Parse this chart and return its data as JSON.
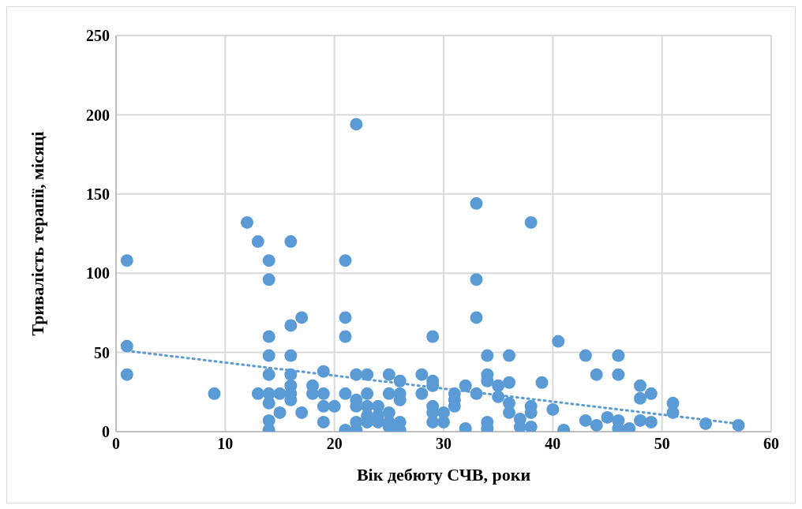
{
  "chart_data": {
    "type": "scatter",
    "xlabel": "Вік дебюту СЧВ, роки",
    "ylabel": "Тривалість  терапії, місяці",
    "xlim": [
      0,
      60
    ],
    "xticks": [
      0,
      10,
      20,
      30,
      40,
      50,
      60
    ],
    "ylim": [
      0,
      250
    ],
    "yticks": [
      0,
      50,
      100,
      150,
      200,
      250
    ],
    "grid": true,
    "series": [
      {
        "color": "#5b9bd5",
        "marker": "circle",
        "x": [
          1,
          1,
          1,
          9,
          12,
          13,
          14,
          14,
          13,
          14,
          14,
          14,
          14,
          14,
          14,
          14,
          15,
          15,
          16,
          16,
          17,
          16,
          16,
          16,
          16,
          16,
          17,
          18,
          18,
          19,
          19,
          19,
          19,
          20,
          21,
          21,
          21,
          21,
          21,
          22,
          22,
          22,
          22,
          22,
          22,
          23,
          23,
          23,
          23,
          23,
          24,
          24,
          24,
          25,
          25,
          25,
          25,
          25,
          26,
          26,
          26,
          26,
          26,
          28,
          28,
          29,
          29,
          29,
          29,
          29,
          29,
          30,
          30,
          31,
          31,
          31,
          32,
          32,
          33,
          33,
          33,
          33,
          34,
          34,
          34,
          34,
          34,
          35,
          35,
          36,
          36,
          36,
          36,
          37,
          37,
          38,
          38,
          38,
          38,
          39,
          40,
          40.5,
          41,
          43,
          43,
          44,
          44,
          45,
          46,
          46,
          46,
          46,
          47,
          48,
          48,
          48,
          49,
          49,
          51,
          51,
          54,
          57
        ],
        "values": [
          108,
          54,
          36,
          24,
          132,
          120,
          108,
          96,
          24,
          60,
          48,
          36,
          24,
          18,
          7,
          1,
          24,
          12,
          120,
          67,
          72,
          48,
          36,
          29,
          24,
          20,
          12,
          29,
          24,
          38,
          24,
          16,
          6,
          16,
          108,
          72,
          60,
          24,
          1,
          194,
          36,
          20,
          16,
          6,
          1,
          36,
          24,
          16,
          10,
          6,
          16,
          10,
          6,
          36,
          24,
          12,
          6,
          3,
          32,
          24,
          20,
          6,
          1,
          36,
          24,
          60,
          32,
          29,
          16,
          12,
          6,
          12,
          6,
          24,
          20,
          16,
          29,
          2,
          144,
          96,
          72,
          24,
          48,
          36,
          32,
          6,
          2,
          29,
          22,
          48,
          31,
          18,
          12,
          8,
          3,
          132,
          16,
          12,
          3,
          31,
          14,
          57,
          1,
          48,
          7,
          36,
          4,
          9,
          48,
          36,
          7,
          2,
          2,
          29,
          21,
          7,
          24,
          6,
          18,
          12,
          5,
          4
        ]
      },
      {
        "type": "line",
        "color": "#5b9bd5",
        "marker": "none",
        "line_style": "dotted",
        "x": [
          1,
          57
        ],
        "values": [
          51,
          5
        ]
      }
    ]
  }
}
